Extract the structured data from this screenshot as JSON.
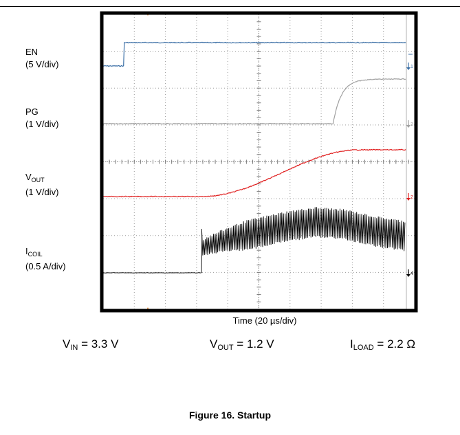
{
  "header_rule": true,
  "chart_data": {
    "type": "line",
    "title": "",
    "xlabel": "Time (20 µs/div)",
    "grid": true,
    "x_divisions": 10,
    "y_divisions": 8,
    "x_unit": "µs",
    "x": [
      0,
      20,
      40,
      60,
      80,
      100,
      120,
      140,
      160,
      180,
      200
    ],
    "series": [
      {
        "name": "EN",
        "scale": "5 V/div",
        "color": "#3a6ea5",
        "values": [
          0,
          3.3,
          3.3,
          3.3,
          3.3,
          3.3,
          3.3,
          3.3,
          3.3,
          3.3,
          3.3
        ]
      },
      {
        "name": "PG",
        "scale": "1 V/div",
        "color": "#a0a0a0",
        "values": [
          0,
          0,
          0,
          0,
          0,
          0,
          0,
          0,
          0,
          1.3,
          1.35
        ]
      },
      {
        "name": "VOUT",
        "scale": "1 V/div",
        "color": "#e02020",
        "values": [
          0,
          0,
          0,
          0,
          0.15,
          0.4,
          0.65,
          0.9,
          1.1,
          1.2,
          1.2
        ]
      },
      {
        "name": "ICOIL",
        "scale": "0.5 A/div",
        "color": "#000000",
        "values": [
          0,
          0,
          0,
          0.5,
          0.7,
          0.85,
          1.0,
          1.1,
          1.05,
          0.9,
          0.8
        ]
      }
    ]
  },
  "labels": {
    "en": {
      "name": "EN",
      "scale": "(5 V/div)"
    },
    "pg": {
      "name": "PG",
      "scale": "(1 V/div)"
    },
    "vout": {
      "main": "V",
      "sub": "OUT",
      "scale": "(1 V/div)"
    },
    "icoil": {
      "main": "I",
      "sub": "COIL",
      "scale": "(0.5 A/div)"
    }
  },
  "markers": {
    "en": "1",
    "pg": "3",
    "vout": "2",
    "icoil": "4"
  },
  "conditions": {
    "vin": {
      "main": "V",
      "sub": "IN",
      "rest": " = 3.3 V"
    },
    "vout": {
      "main": "V",
      "sub": "OUT",
      "rest": " = 1.2 V"
    },
    "iload": {
      "main": "I",
      "sub": "LOAD",
      "rest": " = 2.2 Ω"
    }
  },
  "caption": "Figure 16. Startup"
}
